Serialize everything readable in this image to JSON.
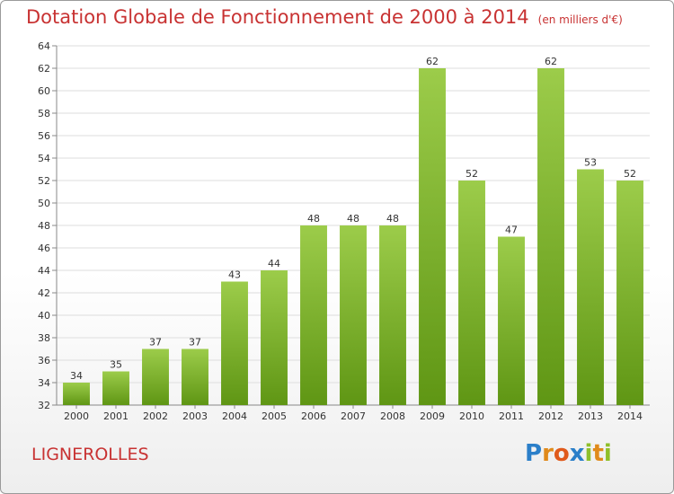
{
  "title": "Dotation Globale de Fonctionnement de 2000 à 2014",
  "title_unit": "(en milliers d'€)",
  "commune": "LIGNEROLLES",
  "logo": {
    "text": "Proxiti",
    "letters": [
      "P",
      "r",
      "o",
      "x",
      "i",
      "t",
      "i"
    ],
    "letter_colors": [
      "#2b7fc9",
      "#e08a1b",
      "#e05a1b",
      "#2b7fc9",
      "#8fbf2a",
      "#e08a1b",
      "#8fbf2a"
    ]
  },
  "colors": {
    "title": "#c83232",
    "bar_top": "#9ccc4a",
    "bar_bottom": "#5f9614",
    "grid": "#dddddd",
    "axis": "#888888"
  },
  "chart_data": {
    "type": "bar",
    "title": "Dotation Globale de Fonctionnement de 2000 à 2014",
    "subtitle": "(en milliers d'€)",
    "categories": [
      "2000",
      "2001",
      "2002",
      "2003",
      "2004",
      "2005",
      "2006",
      "2007",
      "2008",
      "2009",
      "2010",
      "2011",
      "2012",
      "2013",
      "2014"
    ],
    "values": [
      34,
      35,
      37,
      37,
      43,
      44,
      48,
      48,
      48,
      62,
      52,
      47,
      62,
      53,
      52
    ],
    "ylim": [
      32,
      64
    ],
    "yticks": [
      32,
      34,
      36,
      38,
      40,
      42,
      44,
      46,
      48,
      50,
      52,
      54,
      56,
      58,
      60,
      62,
      64
    ],
    "xlabel": "",
    "ylabel": "",
    "grid": true,
    "legend": "none"
  }
}
